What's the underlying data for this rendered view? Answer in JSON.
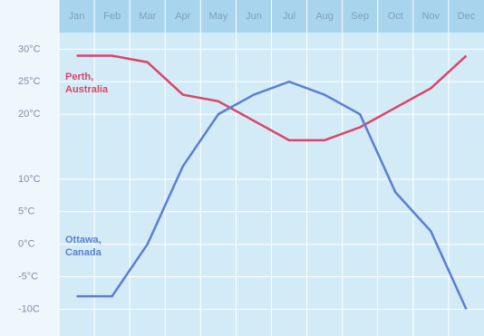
{
  "chart_data": {
    "type": "line",
    "categories": [
      "Jan",
      "Feb",
      "Mar",
      "Apr",
      "May",
      "Jun",
      "Jul",
      "Aug",
      "Sep",
      "Oct",
      "Nov",
      "Dec"
    ],
    "series": [
      {
        "name": "Perth, Australia",
        "color": "#d9456a",
        "values": [
          29,
          29,
          28,
          23,
          22,
          19,
          16,
          16,
          18,
          21,
          24,
          29
        ]
      },
      {
        "name": "Ottawa, Canada",
        "color": "#5b7fd0",
        "values": [
          -8,
          -8,
          0,
          12,
          20,
          23,
          25,
          23,
          20,
          8,
          2,
          -10
        ]
      }
    ],
    "ylim": [
      -13,
      32
    ],
    "yticks": [
      {
        "value": 30,
        "label": "30°C"
      },
      {
        "value": 25,
        "label": "25°C"
      },
      {
        "value": 20,
        "label": "20°C"
      },
      {
        "value": 10,
        "label": "10°C"
      },
      {
        "value": 5,
        "label": "5°C"
      },
      {
        "value": 0,
        "label": "0°C"
      },
      {
        "value": -5,
        "label": "-5°C"
      },
      {
        "value": -10,
        "label": "-10C"
      }
    ],
    "grid": true
  }
}
